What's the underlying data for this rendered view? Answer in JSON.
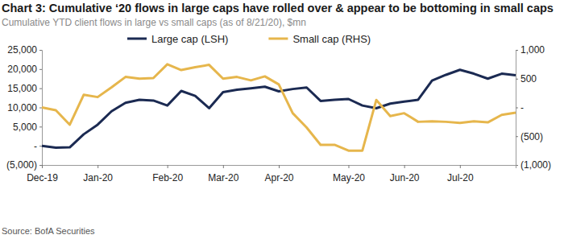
{
  "chart_data": {
    "type": "line",
    "title": "Chart 3: Cumulative ‘20 flows in large caps have rolled over & appear to be bottoming in small caps",
    "subtitle": "Cumulative YTD client flows in large vs small caps (as of 8/21/20), $mn",
    "source": "Source: BofA Securities",
    "categories": [
      "Dec-19",
      null,
      null,
      null,
      "Jan-20",
      null,
      null,
      null,
      null,
      "Feb-20",
      null,
      null,
      null,
      "Mar-20",
      null,
      null,
      null,
      "Apr-20",
      null,
      null,
      null,
      null,
      "May-20",
      null,
      null,
      null,
      "Jun-20",
      null,
      null,
      null,
      "Jul-20",
      null,
      null,
      null,
      null
    ],
    "series": [
      {
        "name": "Large cap (LSH)",
        "color": "#1b2a52",
        "values": [
          0,
          -500,
          -400,
          3000,
          5500,
          9000,
          11200,
          12000,
          11800,
          10500,
          14300,
          13000,
          9800,
          14000,
          14600,
          15000,
          15400,
          14200,
          14800,
          15200,
          11700,
          12000,
          12200,
          10500,
          9800,
          11000,
          11500,
          12000,
          17000,
          18500,
          19800,
          18800,
          17500,
          18800,
          18400
        ]
      },
      {
        "name": "Small cap (RHS)",
        "color": "#e6b64c",
        "axis": "y2",
        "values": [
          0,
          -50,
          -300,
          220,
          180,
          350,
          530,
          500,
          510,
          750,
          650,
          700,
          740,
          500,
          530,
          470,
          540,
          400,
          -100,
          -350,
          -650,
          -650,
          -750,
          -750,
          130,
          -150,
          -100,
          -250,
          -240,
          -250,
          -270,
          -240,
          -260,
          -130,
          -90
        ]
      }
    ],
    "ylim": [
      -5000,
      25000
    ],
    "yticks": [
      {
        "value": -5000,
        "label": "(5,000)"
      },
      {
        "value": 0,
        "label": "-"
      },
      {
        "value": 5000,
        "label": "5,000"
      },
      {
        "value": 10000,
        "label": "10,000"
      },
      {
        "value": 15000,
        "label": "15,000"
      },
      {
        "value": 20000,
        "label": "20,000"
      },
      {
        "value": 25000,
        "label": "25,000"
      }
    ],
    "y2lim": [
      -1000,
      1000
    ],
    "y2ticks": [
      {
        "value": -1000,
        "label": "(1,000)"
      },
      {
        "value": -500,
        "label": "(500)"
      },
      {
        "value": 0,
        "label": "-"
      },
      {
        "value": 500,
        "label": "500"
      },
      {
        "value": 1000,
        "label": "1,000"
      }
    ],
    "legend": "top",
    "grid": false
  }
}
